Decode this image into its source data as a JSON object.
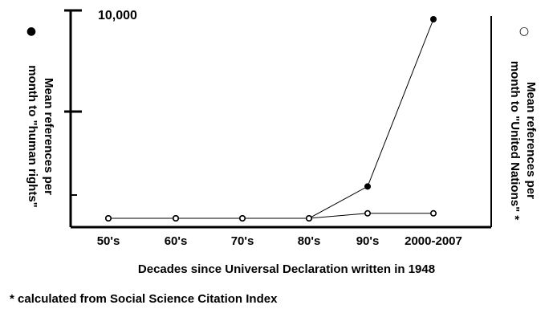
{
  "chart_data": {
    "type": "line",
    "categories": [
      "50's",
      "60's",
      "70's",
      "80's",
      "90's",
      "2000-2007"
    ],
    "xlabel": "Decades since Universal Declaration written in 1948",
    "y_left_label_line1": "Mean references per",
    "y_left_label_line2": "month to \"human rights\"",
    "y_right_label_line1": "Mean references per",
    "y_right_label_line2": "month to \"United Nations\" *",
    "y_max_label": "10,000",
    "ylim": [
      0,
      10000
    ],
    "legend": {
      "filled_marker": "●",
      "open_marker": "○"
    },
    "series": [
      {
        "name": "human rights",
        "marker": "filled",
        "values": [
          0,
          0,
          0,
          0,
          1600,
          10000
        ]
      },
      {
        "name": "United Nations",
        "marker": "open",
        "values": [
          0,
          0,
          0,
          0,
          250,
          250
        ]
      }
    ],
    "footnote": "* calculated from Social Science Citation Index"
  }
}
